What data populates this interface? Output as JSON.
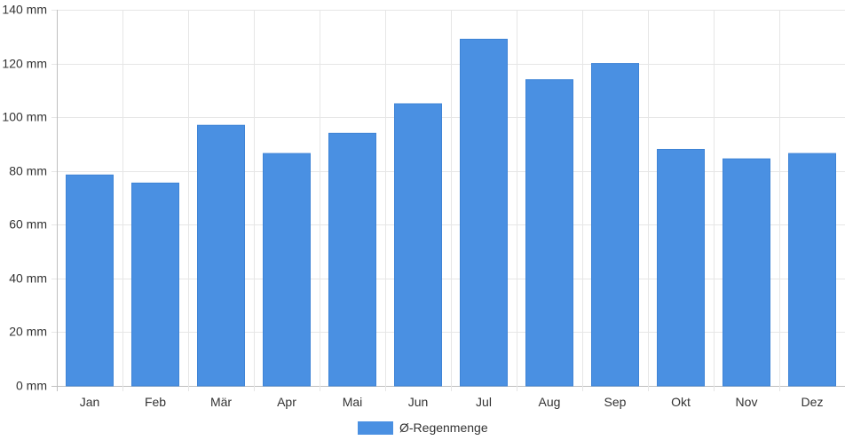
{
  "chart_data": {
    "type": "bar",
    "categories": [
      "Jan",
      "Feb",
      "Mär",
      "Apr",
      "Mai",
      "Jun",
      "Jul",
      "Aug",
      "Sep",
      "Okt",
      "Nov",
      "Dez"
    ],
    "series": [
      {
        "name": "Ø-Regenmenge",
        "values": [
          78.5,
          75.5,
          97,
          86.5,
          94,
          105,
          129,
          114,
          120,
          88,
          84.5,
          86.5
        ],
        "color": "#4a90e2"
      }
    ],
    "ylim": [
      0,
      140
    ],
    "yticks": [
      0,
      20,
      40,
      60,
      80,
      100,
      120,
      140
    ],
    "y_unit": "mm",
    "grid": true,
    "legend_position": "bottom-center"
  }
}
